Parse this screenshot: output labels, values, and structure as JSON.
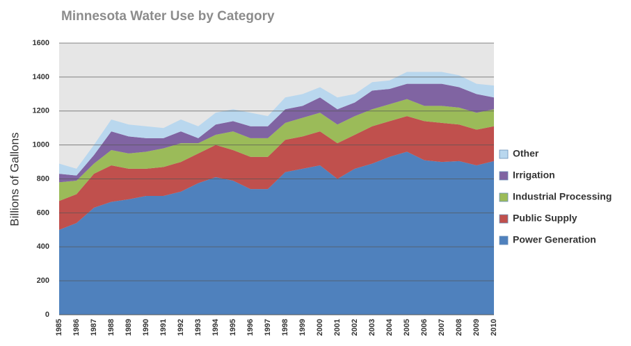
{
  "chart_data": {
    "type": "stacked_area",
    "title": "Minnesota Water Use by Category",
    "y_label": "Billions of Gallons",
    "categories": [
      "1985",
      "1986",
      "1987",
      "1988",
      "1989",
      "1990",
      "1991",
      "1992",
      "1993",
      "1994",
      "1995",
      "1996",
      "1997",
      "1998",
      "1999",
      "2000",
      "2001",
      "2002",
      "2003",
      "2004",
      "2005",
      "2006",
      "2007",
      "2008",
      "2009",
      "2010"
    ],
    "series": [
      {
        "name": "Power Generation",
        "color": "#4f81bd",
        "values": [
          500,
          540,
          630,
          665,
          680,
          700,
          700,
          725,
          775,
          810,
          790,
          740,
          740,
          840,
          860,
          880,
          800,
          860,
          890,
          930,
          960,
          910,
          900,
          905,
          880,
          905
        ]
      },
      {
        "name": "Public Supply",
        "color": "#c0504d",
        "values": [
          170,
          170,
          200,
          215,
          180,
          160,
          170,
          175,
          175,
          190,
          180,
          190,
          190,
          190,
          190,
          200,
          210,
          200,
          220,
          210,
          210,
          230,
          230,
          215,
          210,
          205
        ]
      },
      {
        "name": "Industrial Processing",
        "color": "#9bbb59",
        "values": [
          110,
          80,
          60,
          90,
          90,
          100,
          110,
          110,
          60,
          60,
          110,
          110,
          110,
          100,
          110,
          110,
          110,
          110,
          100,
          100,
          100,
          90,
          100,
          100,
          100,
          100
        ]
      },
      {
        "name": "Irrigation",
        "color": "#8064a2",
        "values": [
          50,
          30,
          50,
          110,
          100,
          80,
          60,
          70,
          30,
          60,
          60,
          70,
          70,
          80,
          70,
          90,
          90,
          80,
          110,
          90,
          90,
          130,
          130,
          120,
          110,
          70
        ]
      },
      {
        "name": "Other",
        "color": "#b9d7ee",
        "values": [
          60,
          40,
          60,
          70,
          70,
          70,
          60,
          70,
          70,
          70,
          70,
          80,
          60,
          70,
          70,
          60,
          70,
          50,
          50,
          50,
          70,
          70,
          70,
          70,
          60,
          70
        ]
      }
    ],
    "ylim": [
      0,
      1600
    ],
    "yticks": [
      0,
      200,
      400,
      600,
      800,
      1000,
      1200,
      1400,
      1600
    ],
    "grid": true,
    "legend": "right"
  }
}
